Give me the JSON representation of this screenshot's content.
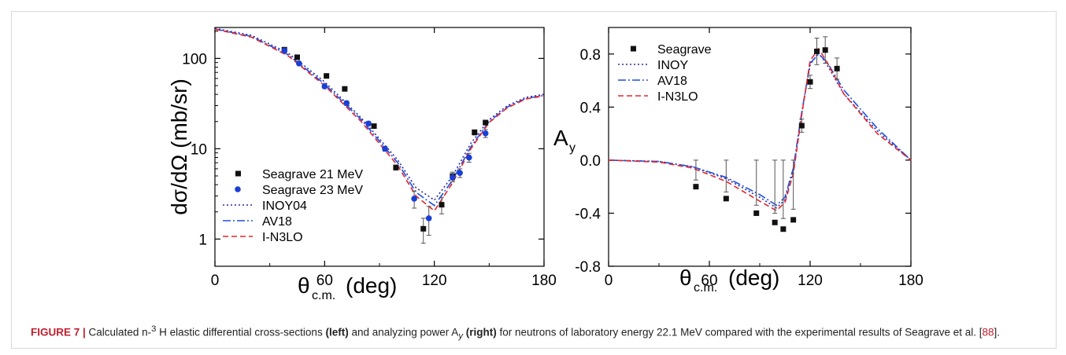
{
  "chart_data": [
    {
      "type": "line",
      "xlim": [
        0,
        180
      ],
      "ylim": [
        0.5,
        220
      ],
      "yscale": "log",
      "x_ticks": [
        "0",
        "60",
        "120",
        "180"
      ],
      "y_ticks": [
        "1",
        "10",
        "100"
      ],
      "ylabel": "dσ/dΩ (mb/sr)",
      "xlabel": "θc.m. (deg)",
      "legend_position": "lower-left",
      "series": [
        {
          "name": "Seagrave 21 MeV",
          "kind": "points",
          "marker": "square",
          "color": "#111111",
          "x": [
            38,
            45,
            61,
            71,
            87,
            99,
            114,
            124,
            130,
            142,
            148
          ],
          "y": [
            125,
            103,
            64,
            46,
            17.8,
            6.2,
            1.3,
            2.4,
            5.0,
            15.2,
            19.5
          ],
          "err": [
            5,
            5,
            3,
            2.5,
            1,
            0.4,
            0.4,
            0.5,
            0.5,
            1,
            1.2
          ]
        },
        {
          "name": "Seagrave 23 MeV",
          "kind": "points",
          "marker": "circle",
          "color": "#1a3fd6",
          "x": [
            38,
            46,
            60,
            72,
            84,
            93,
            109,
            117,
            130,
            134,
            139,
            148
          ],
          "y": [
            122,
            88,
            49,
            32,
            19,
            10,
            2.8,
            1.7,
            4.8,
            5.4,
            8.0,
            14.8
          ],
          "err": [
            4,
            4,
            2.5,
            1.8,
            1,
            0.6,
            0.6,
            0.6,
            0.5,
            0.6,
            0.9,
            1.5
          ]
        },
        {
          "name": "INOY04",
          "kind": "line",
          "dash": "2,3",
          "color": "#2a2aa8",
          "x": [
            0,
            20,
            40,
            60,
            80,
            100,
            110,
            120,
            130,
            140,
            150,
            160,
            170,
            180
          ],
          "y": [
            215,
            180,
            115,
            55,
            22,
            7.5,
            3.7,
            2.7,
            5.0,
            11.5,
            21,
            30,
            37,
            40
          ]
        },
        {
          "name": "AV18",
          "kind": "line",
          "dash": "10,3,2,3",
          "color": "#1f4fe0",
          "x": [
            0,
            20,
            40,
            60,
            80,
            100,
            110,
            120,
            130,
            140,
            150,
            160,
            170,
            180
          ],
          "y": [
            212,
            175,
            110,
            52,
            21,
            7.0,
            3.3,
            2.35,
            4.5,
            10.5,
            20,
            29,
            36,
            39
          ]
        },
        {
          "name": "I-N3LO",
          "kind": "line",
          "dash": "7,4",
          "color": "#e8262b",
          "x": [
            0,
            20,
            40,
            60,
            80,
            100,
            110,
            120,
            130,
            140,
            150,
            160,
            170,
            180
          ],
          "y": [
            210,
            172,
            107,
            50,
            20,
            6.5,
            3.0,
            2.05,
            4.2,
            10,
            19.5,
            28.5,
            35.5,
            38.5
          ]
        }
      ]
    },
    {
      "type": "line",
      "xlim": [
        0,
        180
      ],
      "ylim": [
        -0.8,
        1.0
      ],
      "x_ticks": [
        "0",
        "60",
        "120",
        "180"
      ],
      "y_ticks": [
        "-0.8",
        "-0.4",
        "0.0",
        "0.4",
        "0.8"
      ],
      "y_tick_values": [
        -0.8,
        -0.4,
        0.0,
        0.4,
        0.8
      ],
      "ylabel": "Ay",
      "xlabel": "θc.m. (deg)",
      "legend_position": "top-left",
      "series": [
        {
          "name": "Seagrave",
          "kind": "points",
          "marker": "square",
          "color": "#111111",
          "x": [
            52,
            70,
            88,
            99,
            104,
            110,
            115,
            120,
            124,
            129,
            136
          ],
          "y": [
            -0.2,
            -0.29,
            -0.4,
            -0.47,
            -0.52,
            -0.45,
            0.26,
            0.59,
            0.82,
            0.83,
            0.69
          ],
          "err": [
            0.05,
            0.05,
            0.06,
            0.07,
            0.08,
            0.08,
            0.05,
            0.05,
            0.1,
            0.1,
            0.08
          ]
        },
        {
          "name": "INOY",
          "kind": "line",
          "dash": "2,3",
          "color": "#2a2aa8",
          "x": [
            0,
            30,
            50,
            70,
            90,
            100,
            105,
            110,
            115,
            120,
            125,
            130,
            140,
            160,
            180
          ],
          "y": [
            0,
            -0.01,
            -0.05,
            -0.14,
            -0.28,
            -0.36,
            -0.3,
            -0.08,
            0.35,
            0.72,
            0.81,
            0.72,
            0.5,
            0.22,
            0
          ]
        },
        {
          "name": "AV18",
          "kind": "line",
          "dash": "10,3,2,3",
          "color": "#1f4fe0",
          "x": [
            0,
            30,
            50,
            70,
            90,
            100,
            105,
            110,
            115,
            120,
            125,
            130,
            140,
            160,
            180
          ],
          "y": [
            0,
            -0.01,
            -0.05,
            -0.13,
            -0.26,
            -0.34,
            -0.28,
            -0.06,
            0.36,
            0.73,
            0.8,
            0.74,
            0.53,
            0.24,
            0
          ]
        },
        {
          "name": "I-N3LO",
          "kind": "line",
          "dash": "7,4",
          "color": "#e8262b",
          "x": [
            0,
            30,
            50,
            70,
            90,
            100,
            105,
            110,
            115,
            120,
            125,
            130,
            140,
            160,
            180
          ],
          "y": [
            0,
            -0.015,
            -0.06,
            -0.16,
            -0.31,
            -0.38,
            -0.32,
            -0.1,
            0.34,
            0.75,
            0.84,
            0.74,
            0.5,
            0.2,
            0
          ]
        }
      ]
    }
  ],
  "caption": {
    "label": "FIGURE 7 |",
    "text_1": " Calculated n-",
    "sup": "3",
    "text_2": " H elastic differential cross-sections ",
    "left": "(left)",
    "text_3": " and analyzing power A",
    "sub": "y",
    "text_4": " ",
    "right": "(right)",
    "text_5": " for neutrons of laboratory energy 22.1 MeV compared with the experimental results of Seagrave et al. [",
    "ref": "88",
    "text_6": "]."
  }
}
